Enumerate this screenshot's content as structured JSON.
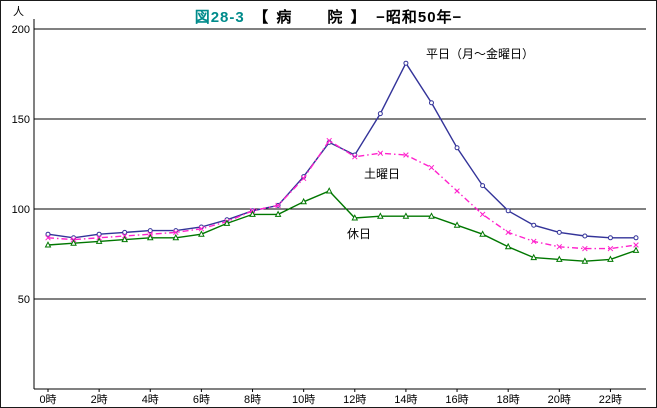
{
  "title": {
    "prefix": "図28-3",
    "main": "【 病　　院 】",
    "suffix": "−昭和50年−"
  },
  "chart_data": {
    "type": "line",
    "title": "図28-3 【 病 院 】 −昭和50年−",
    "xlabel": "",
    "ylabel": "人",
    "ylim": [
      0,
      200
    ],
    "yticks": [
      50,
      100,
      150,
      200
    ],
    "grid": "horizontal",
    "x_hours": [
      0,
      1,
      2,
      3,
      4,
      5,
      6,
      7,
      8,
      9,
      10,
      11,
      12,
      13,
      14,
      15,
      16,
      17,
      18,
      19,
      20,
      21,
      22,
      23
    ],
    "x_tick_hours": [
      0,
      2,
      4,
      6,
      8,
      10,
      12,
      14,
      16,
      18,
      20,
      22
    ],
    "x_tick_labels": [
      "0時",
      "2時",
      "4時",
      "6時",
      "8時",
      "10時",
      "12時",
      "14時",
      "16時",
      "18時",
      "20時",
      "22時"
    ],
    "legend_position": "inline-annotations",
    "series": [
      {
        "name": "平日（月～金曜日）",
        "color": "#333399",
        "marker": "circle",
        "dash": null,
        "values": [
          86,
          84,
          86,
          87,
          88,
          88,
          90,
          94,
          99,
          102,
          118,
          137,
          130,
          153,
          181,
          159,
          134,
          113,
          99,
          91,
          87,
          85,
          84,
          84
        ]
      },
      {
        "name": "土曜日",
        "color": "#ff22cc",
        "marker": "x",
        "dash": "6 3 1.5 3",
        "values": [
          84,
          83,
          84,
          85,
          86,
          87,
          89,
          93,
          99,
          102,
          117,
          138,
          129,
          131,
          130,
          123,
          110,
          97,
          87,
          82,
          79,
          78,
          78,
          80
        ]
      },
      {
        "name": "休日",
        "color": "#007700",
        "marker": "triangle",
        "dash": null,
        "values": [
          80,
          81,
          82,
          83,
          84,
          84,
          86,
          92,
          97,
          97,
          104,
          110,
          95,
          96,
          96,
          96,
          91,
          86,
          79,
          73,
          72,
          71,
          72,
          77
        ]
      }
    ]
  }
}
